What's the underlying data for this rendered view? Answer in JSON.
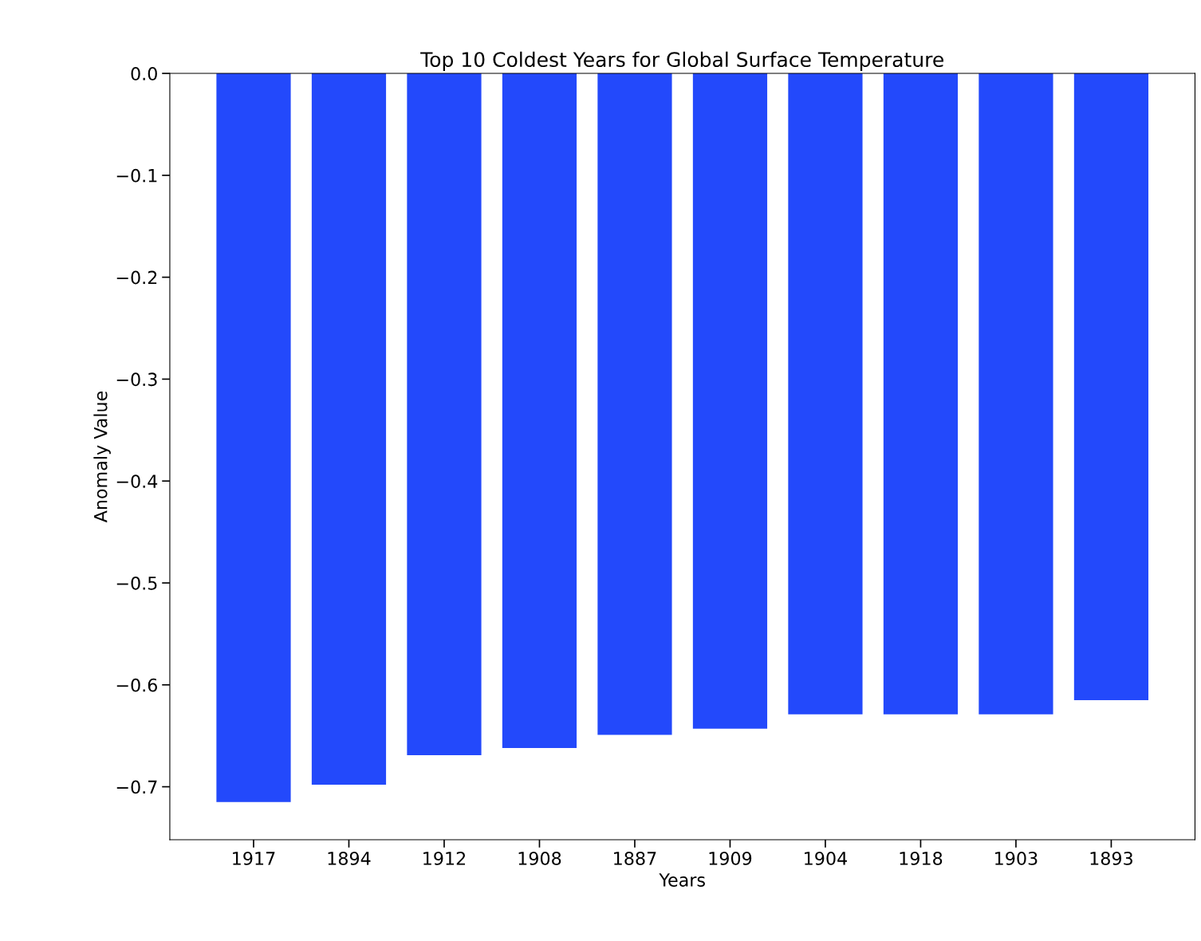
{
  "chart_data": {
    "type": "bar",
    "title": "Top 10 Coldest Years for Global Surface Temperature",
    "xlabel": "Years",
    "ylabel": "Anomaly Value",
    "categories": [
      "1917",
      "1894",
      "1912",
      "1908",
      "1887",
      "1909",
      "1904",
      "1918",
      "1903",
      "1893"
    ],
    "values": [
      -0.715,
      -0.698,
      -0.669,
      -0.662,
      -0.649,
      -0.643,
      -0.629,
      -0.629,
      -0.629,
      -0.615
    ],
    "color": "#2349fb",
    "ylim": [
      -0.752,
      0.0
    ],
    "yticks": [
      {
        "value": -0.7,
        "label": "−0.7"
      },
      {
        "value": -0.6,
        "label": "−0.6"
      },
      {
        "value": -0.5,
        "label": "−0.5"
      },
      {
        "value": -0.4,
        "label": "−0.4"
      },
      {
        "value": -0.3,
        "label": "−0.3"
      },
      {
        "value": -0.2,
        "label": "−0.2"
      },
      {
        "value": -0.1,
        "label": "−0.1"
      },
      {
        "value": 0.0,
        "label": "0.0"
      }
    ],
    "grid": false
  }
}
